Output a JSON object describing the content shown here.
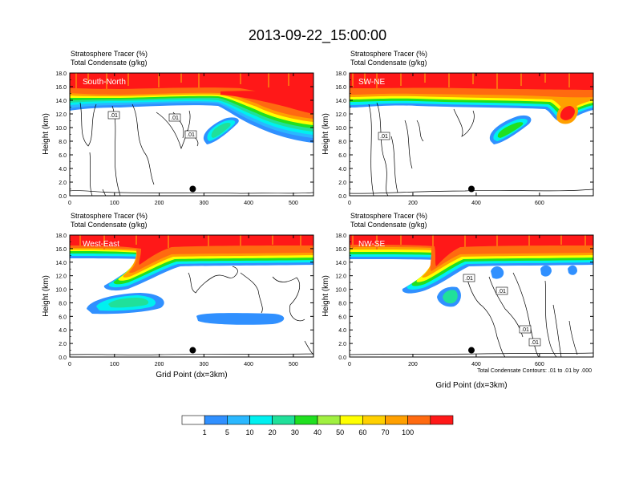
{
  "title": "2013-09-22_15:00:00",
  "footer": {
    "contour_note": "Total Condensate Contours: .01 to .01 by .000",
    "xlabel": "Grid Point (dx=3km)"
  },
  "colorbar": {
    "levels": [
      "1",
      "5",
      "10",
      "20",
      "30",
      "40",
      "50",
      "60",
      "70",
      "100"
    ],
    "colors": [
      "#ffffff",
      "#3090ff",
      "#2ab8ff",
      "#00f0f0",
      "#20e09a",
      "#20e020",
      "#a0f040",
      "#ffff00",
      "#ffd000",
      "#ffa000",
      "#ff6a10",
      "#ff1818"
    ]
  },
  "chart_data": [
    {
      "type": "contour",
      "label": "South-North",
      "title_line1": "Stratosphere Tracer   (%)",
      "title_line2": "Total Condensate   (g/kg)",
      "ylabel": "Height (km)",
      "xlabel": "",
      "xlim": [
        0,
        545
      ],
      "ylim": [
        0,
        18
      ],
      "xticks": [
        "0",
        "100",
        "200",
        "300",
        "400",
        "500"
      ],
      "yticks": [
        "0.0",
        "2.0",
        "4.0",
        "6.0",
        "8.0",
        "10.0",
        "12.0",
        "14.0",
        "16.0",
        "18.0"
      ],
      "contour_labels": [
        ".01",
        ".01",
        ".01"
      ],
      "marker": {
        "x": 275,
        "y": 1.0
      }
    },
    {
      "type": "contour",
      "label": "SW-NE",
      "title_line1": "Stratosphere Tracer   (%)",
      "title_line2": "Total Condensate   (g/kg)",
      "ylabel": "Height (km)",
      "xlabel": "",
      "xlim": [
        0,
        770
      ],
      "ylim": [
        0,
        18
      ],
      "xticks": [
        "0",
        "200",
        "400",
        "600"
      ],
      "yticks": [
        "0.0",
        "2.0",
        "4.0",
        "6.0",
        "8.0",
        "10.0",
        "12.0",
        "14.0",
        "16.0",
        "18.0"
      ],
      "contour_labels": [
        ".01"
      ],
      "marker": {
        "x": 385,
        "y": 1.0
      }
    },
    {
      "type": "contour",
      "label": "West-East",
      "title_line1": "Stratosphere Tracer   (%)",
      "title_line2": "Total Condensate   (g/kg)",
      "ylabel": "Height (km)",
      "xlabel": "Grid Point (dx=3km)",
      "xlim": [
        0,
        545
      ],
      "ylim": [
        0,
        18
      ],
      "xticks": [
        "0",
        "100",
        "200",
        "300",
        "400",
        "500"
      ],
      "yticks": [
        "0.0",
        "2.0",
        "4.0",
        "6.0",
        "8.0",
        "10.0",
        "12.0",
        "14.0",
        "16.0",
        "18.0"
      ],
      "contour_labels": [],
      "marker": {
        "x": 275,
        "y": 1.0
      }
    },
    {
      "type": "contour",
      "label": "NW-SE",
      "title_line1": "Stratosphere Tracer   (%)",
      "title_line2": "Total Condensate   (g/kg)",
      "ylabel": "Height (km)",
      "xlabel": "Grid Point (dx=3km)",
      "xlim": [
        0,
        770
      ],
      "ylim": [
        0,
        18
      ],
      "xticks": [
        "0",
        "200",
        "400",
        "600"
      ],
      "yticks": [
        "0.0",
        "2.0",
        "4.0",
        "6.0",
        "8.0",
        "10.0",
        "12.0",
        "14.0",
        "16.0",
        "18.0"
      ],
      "contour_labels": [
        ".01",
        ".01",
        ".01",
        ".01"
      ],
      "marker": {
        "x": 385,
        "y": 1.0
      }
    }
  ]
}
